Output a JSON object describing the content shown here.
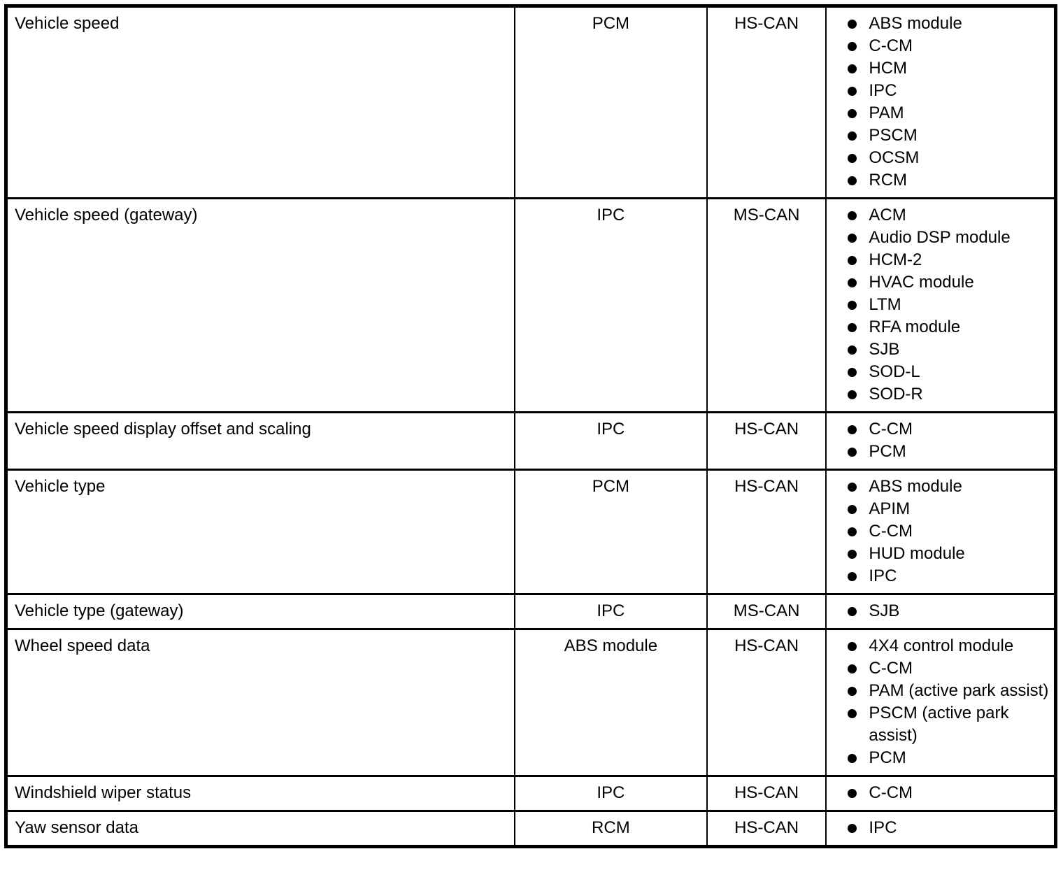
{
  "page": {
    "background_color": "#ffffff",
    "text_color": "#000000",
    "border_color": "#000000"
  },
  "table": {
    "column_semantics": [
      "message",
      "originated_from",
      "network",
      "receivers"
    ],
    "rows": [
      {
        "message": "Vehicle speed",
        "origin": "PCM",
        "network": "HS-CAN",
        "receivers": [
          "ABS module",
          "C-CM",
          "HCM",
          "IPC",
          "PAM",
          "PSCM",
          "OCSM",
          "RCM"
        ]
      },
      {
        "message": "Vehicle speed (gateway)",
        "origin": "IPC",
        "network": "MS-CAN",
        "receivers": [
          "ACM",
          "Audio DSP module",
          "HCM-2",
          "HVAC module",
          "LTM",
          "RFA module",
          "SJB",
          "SOD-L",
          "SOD-R"
        ]
      },
      {
        "message": "Vehicle speed display offset and scaling",
        "origin": "IPC",
        "network": "HS-CAN",
        "receivers": [
          "C-CM",
          "PCM"
        ]
      },
      {
        "message": "Vehicle type",
        "origin": "PCM",
        "network": "HS-CAN",
        "receivers": [
          "ABS module",
          "APIM",
          "C-CM",
          "HUD module",
          "IPC"
        ]
      },
      {
        "message": "Vehicle type (gateway)",
        "origin": "IPC",
        "network": "MS-CAN",
        "receivers": [
          "SJB"
        ]
      },
      {
        "message": "Wheel speed data",
        "origin": "ABS module",
        "network": "HS-CAN",
        "receivers": [
          "4X4 control module",
          "C-CM",
          "PAM (active park assist)",
          "PSCM (active park assist)",
          "PCM"
        ]
      },
      {
        "message": "Windshield wiper status",
        "origin": "IPC",
        "network": "HS-CAN",
        "receivers": [
          "C-CM"
        ]
      },
      {
        "message": "Yaw sensor data",
        "origin": "RCM",
        "network": "HS-CAN",
        "receivers": [
          "IPC"
        ]
      }
    ]
  }
}
